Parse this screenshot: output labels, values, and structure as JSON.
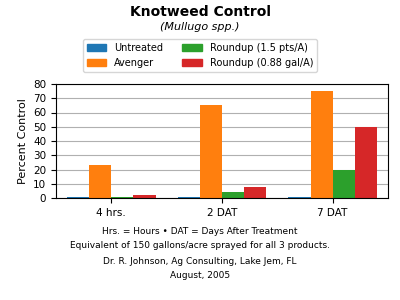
{
  "chart_data": {
    "type": "bar",
    "title": "Knotweed Control",
    "subtitle": "(Mullugo spp.)",
    "categories": [
      "4 hrs.",
      "2 DAT",
      "7 DAT"
    ],
    "series": [
      {
        "name": "Untreated",
        "values": [
          1,
          1,
          1
        ]
      },
      {
        "name": "Avenger",
        "values": [
          23,
          65,
          75
        ]
      },
      {
        "name": "Roundup (1.5 pts/A)",
        "values": [
          1,
          4,
          20
        ]
      },
      {
        "name": "Roundup (0.88 gal/A)",
        "values": [
          2,
          8,
          50
        ]
      }
    ],
    "y_label": "Percent Control",
    "ylim": [
      0,
      80
    ],
    "yticks": [
      0,
      10,
      20,
      30,
      40,
      50,
      60,
      70,
      80
    ],
    "grid": true,
    "legend": "upper center",
    "annotations": [
      "Hrs. = Hours • DAT = Days After Treatment",
      "Equivalent of 150 gallons/acre sprayed for all 3 products.",
      "Dr. R. Johnson, Ag Consulting, Lake Jem, FL",
      "August, 2005"
    ]
  }
}
